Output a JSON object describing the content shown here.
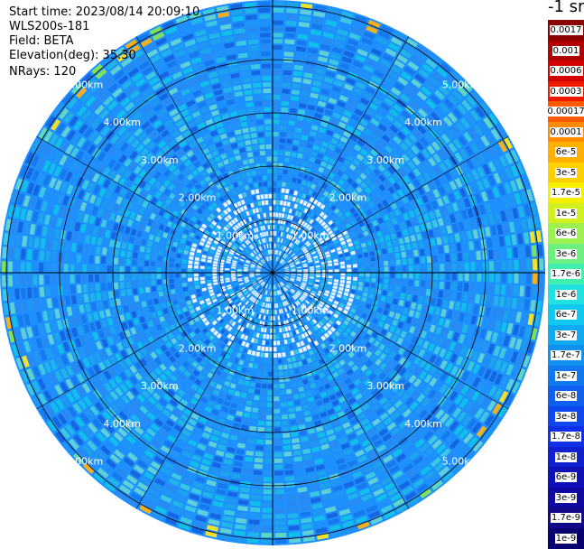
{
  "info": {
    "start_time": "Start time: 2023/08/14 20:09:10",
    "instrument": "WLS200s-181",
    "field": "Field: BETA",
    "elevation": "Elevation(deg): 35.30",
    "nrays": "NRays: 120"
  },
  "colorbar": {
    "title": "-1 sr",
    "labels": [
      "0.0017",
      "0.001",
      "0.0006",
      "0.0003",
      "0.00017",
      "0.0001",
      "6e-5",
      "3e-5",
      "1.7e-5",
      "1e-5",
      "6e-6",
      "3e-6",
      "1.7e-6",
      "1e-6",
      "6e-7",
      "3e-7",
      "1.7e-7",
      "1e-7",
      "6e-8",
      "3e-8",
      "1.7e-8",
      "1e-8",
      "6e-9",
      "3e-9",
      "1.7e-9",
      "1e-9"
    ],
    "colors": [
      "#8b0000",
      "#b00000",
      "#d40000",
      "#ee1a00",
      "#ff5a00",
      "#ff8a00",
      "#ffb000",
      "#ffd000",
      "#f4f000",
      "#d0f020",
      "#9cf050",
      "#6cf080",
      "#40f0b0",
      "#20e0e0",
      "#10c8f0",
      "#10a8f0",
      "#1090f0",
      "#1078f0",
      "#1060f0",
      "#1048f0",
      "#1030e8",
      "#1020d0",
      "#1010b8",
      "#1008a0",
      "#100888",
      "#080070"
    ]
  },
  "ppi": {
    "range_ring_labels": [
      "1.00km",
      "2.00km",
      "3.00km",
      "4.00km",
      "5.00km"
    ],
    "rays": 120,
    "field_colors": [
      "#1e90ff",
      "#2196f3",
      "#1ca3ec",
      "#20b4e8",
      "#3cc8e0",
      "#1878ee",
      "#2a8af0",
      "#5fd0d8",
      "#10c0e8",
      "#1566e0"
    ],
    "edge_colors": [
      "#7fe060",
      "#f0e030",
      "#f4b020",
      "#60d8c0"
    ]
  }
}
